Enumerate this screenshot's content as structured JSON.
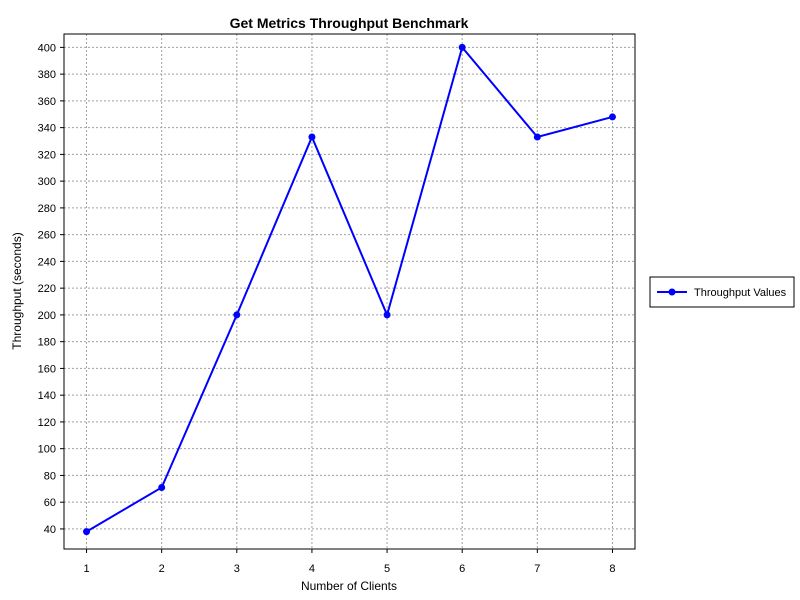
{
  "chart_data": {
    "type": "line",
    "title": "Get Metrics Throughput Benchmark",
    "xlabel": "Number of Clients",
    "ylabel": "Throughput (seconds)",
    "x": [
      1,
      2,
      3,
      4,
      5,
      6,
      7,
      8
    ],
    "xlim": [
      0.7,
      8.3
    ],
    "ylim": [
      25,
      410
    ],
    "xticks": [
      1,
      2,
      3,
      4,
      5,
      6,
      7,
      8
    ],
    "yticks": [
      40,
      60,
      80,
      100,
      120,
      140,
      160,
      180,
      200,
      220,
      240,
      260,
      280,
      300,
      320,
      340,
      360,
      380,
      400
    ],
    "grid": true,
    "legend_position": "right",
    "series": [
      {
        "name": "Throughput Values",
        "color": "#0000ff",
        "marker": "circle",
        "values": [
          38,
          71,
          200,
          333,
          200,
          400,
          333,
          348
        ]
      }
    ]
  }
}
